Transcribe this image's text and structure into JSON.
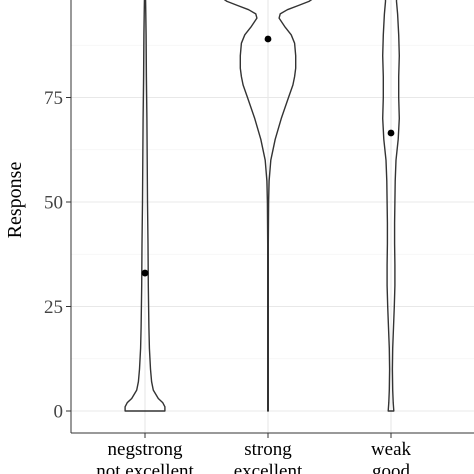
{
  "chart_data": {
    "type": "violin",
    "title": "",
    "xlabel": "",
    "ylabel": "Response",
    "ylim": [
      -4,
      101
    ],
    "yticks": [
      0,
      25,
      50,
      75
    ],
    "grid": true,
    "categories": [
      {
        "line1": "negstrong",
        "line2": "not excellent"
      },
      {
        "line1": "strong",
        "line2": "excellent"
      },
      {
        "line1": "weak",
        "line2": "good"
      }
    ],
    "means": [
      33,
      89,
      66.5
    ],
    "violins": [
      {
        "y": [
          0,
          1,
          2,
          3,
          5,
          7,
          10,
          15,
          20,
          30,
          40,
          50,
          60,
          70,
          80,
          90,
          95,
          98,
          100
        ],
        "halfwidth": [
          0.36,
          0.36,
          0.32,
          0.24,
          0.15,
          0.12,
          0.1,
          0.08,
          0.07,
          0.06,
          0.055,
          0.045,
          0.04,
          0.035,
          0.025,
          0.02,
          0.015,
          0.01,
          0.005
        ]
      },
      {
        "y": [
          0,
          10,
          20,
          30,
          40,
          50,
          55,
          60,
          65,
          70,
          75,
          78,
          80,
          82,
          85,
          88,
          90,
          92,
          94,
          95,
          96,
          97,
          98,
          99,
          100
        ],
        "halfwidth": [
          0.005,
          0.005,
          0.005,
          0.005,
          0.005,
          0.01,
          0.02,
          0.05,
          0.13,
          0.24,
          0.37,
          0.45,
          0.48,
          0.5,
          0.5,
          0.48,
          0.42,
          0.3,
          0.2,
          0.22,
          0.35,
          0.55,
          0.74,
          0.85,
          0.85
        ]
      },
      {
        "y": [
          0,
          2,
          5,
          10,
          15,
          20,
          25,
          30,
          35,
          40,
          45,
          50,
          55,
          60,
          65,
          70,
          75,
          80,
          85,
          90,
          95,
          98,
          100
        ],
        "halfwidth": [
          0.05,
          0.04,
          0.03,
          0.025,
          0.03,
          0.045,
          0.06,
          0.07,
          0.07,
          0.065,
          0.065,
          0.07,
          0.075,
          0.09,
          0.13,
          0.15,
          0.14,
          0.14,
          0.15,
          0.14,
          0.12,
          0.1,
          0.1
        ]
      }
    ]
  }
}
